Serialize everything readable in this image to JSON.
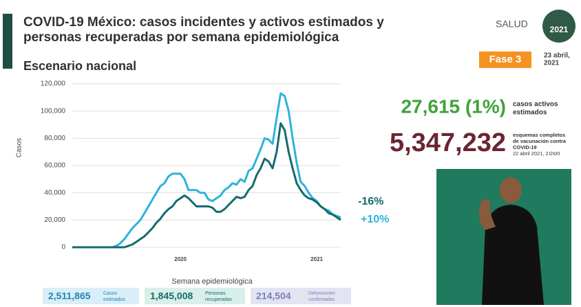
{
  "slide": {
    "title_line1": "COVID-19 México: casos incidentes y activos estimados y",
    "title_line2": "personas recuperadas por semana epidemiológica",
    "subtitle": "Escenario nacional",
    "logo": "SALUD",
    "badge": "2021",
    "phase": "Fase 3",
    "date_line1": "23 abril,",
    "date_line2": "2021",
    "active": "27,615 (1%)",
    "active_label1": "casos activos",
    "active_label2": "estimados",
    "vaccines": "5,347,232",
    "vac_label1": "esquemas completos",
    "vac_label2": "de vacunación contra",
    "vac_label3": "COVID-19",
    "vac_label4": "22 abril 2021, 21h00",
    "boxes": [
      {
        "value": "2,511,865",
        "label1": "Casos",
        "label2": "estimados"
      },
      {
        "value": "1,845,008",
        "label1": "Personas",
        "label2": "recuperadas"
      },
      {
        "value": "214,504",
        "label1": "Defunciones",
        "label2": "confirmadas"
      }
    ]
  },
  "chart_data": {
    "type": "line",
    "ylabel": "Casos",
    "xlabel": "Semana epidemiológica",
    "categories": [
      null,
      null,
      null,
      null,
      null,
      null,
      null,
      null,
      null,
      null,
      null,
      null,
      null,
      null,
      null,
      null,
      null,
      null,
      null,
      null,
      null,
      null,
      null,
      null,
      null,
      null,
      null,
      "2020",
      null,
      null,
      null,
      null,
      null,
      null,
      null,
      null,
      null,
      null,
      null,
      null,
      null,
      null,
      null,
      null,
      null,
      null,
      null,
      null,
      null,
      null,
      null,
      null,
      null,
      null,
      null,
      null,
      null,
      null,
      null,
      null,
      null,
      "2021",
      null,
      null,
      null,
      null,
      null,
      null
    ],
    "series": [
      {
        "color": "#2bb3dc",
        "values": [
          0,
          0,
          0,
          0,
          0,
          0,
          0,
          0,
          0,
          0,
          0,
          1000,
          3000,
          6000,
          10000,
          14000,
          17000,
          20000,
          25000,
          30000,
          35000,
          40000,
          45000,
          47000,
          52000,
          54000,
          54000,
          54000,
          50000,
          42000,
          42000,
          42000,
          40000,
          40000,
          35000,
          34000,
          36000,
          38000,
          42000,
          44000,
          47000,
          46000,
          50000,
          48000,
          56000,
          58000,
          65000,
          72000,
          80000,
          79000,
          76000,
          95000,
          113000,
          111000,
          100000,
          80000,
          62000,
          48000,
          45000,
          40000,
          36000,
          34000,
          30000,
          28000,
          27000,
          24000,
          23000,
          22000
        ]
      },
      {
        "color": "#136b6e",
        "values": [
          0,
          0,
          0,
          0,
          0,
          0,
          0,
          0,
          0,
          0,
          0,
          0,
          0,
          0,
          1000,
          2000,
          4000,
          6000,
          8000,
          11000,
          14000,
          18000,
          21000,
          25000,
          28000,
          30000,
          34000,
          36000,
          38000,
          36000,
          33000,
          30000,
          30000,
          30000,
          30000,
          29000,
          26000,
          26000,
          28000,
          31000,
          34000,
          37000,
          36000,
          37000,
          42000,
          45000,
          53000,
          58000,
          65000,
          63000,
          58000,
          70000,
          91000,
          86000,
          70000,
          58000,
          47000,
          42000,
          38000,
          36000,
          35000,
          33000,
          30000,
          28000,
          25000,
          24000,
          22000,
          20000
        ]
      }
    ],
    "annotations": [
      {
        "text": "-16%",
        "color": "#136b6e"
      },
      {
        "text": "+10%",
        "color": "#2bb3dc"
      }
    ],
    "ylim": [
      0,
      120000
    ],
    "yticks": [
      0,
      {
        "value": 20000,
        "label": "20,000"
      },
      {
        "value": 40000,
        "label": "40,000"
      },
      {
        "value": 60000,
        "label": "60,000"
      },
      {
        "value": 80000,
        "label": "80,000"
      },
      {
        "value": 100000,
        "label": "100,000"
      },
      {
        "value": 120000,
        "label": "120,000"
      }
    ],
    "grid": true
  }
}
